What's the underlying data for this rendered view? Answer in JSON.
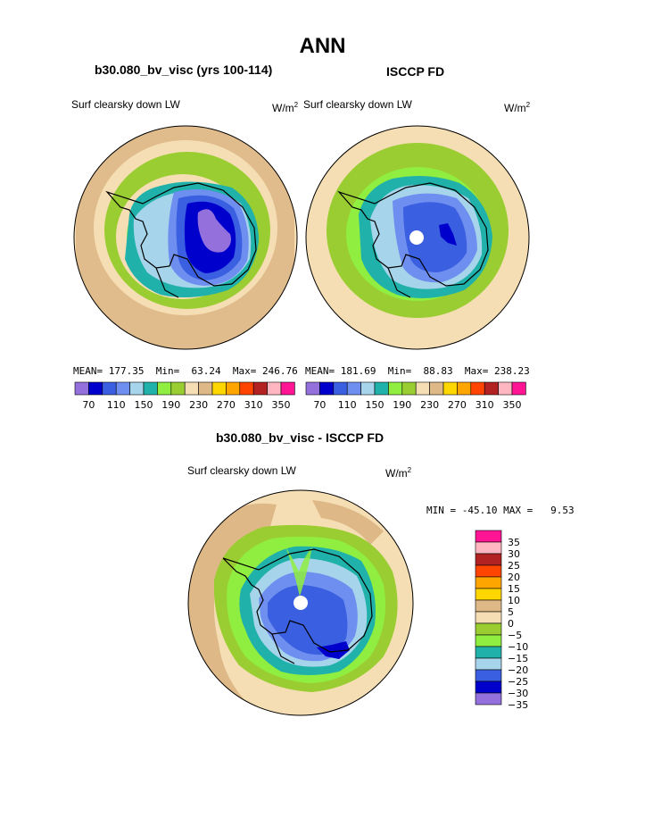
{
  "page_title": "ANN",
  "panels": {
    "left": {
      "title": "b30.080_bv_visc (yrs 100-114)",
      "variable": "Surf clearsky down LW",
      "units_base": "W/m",
      "units_exp": "2",
      "stats": {
        "mean_label": "MEAN=",
        "mean": "177.35",
        "min_label": "Min=",
        "min": "63.24",
        "max_label": "Max=",
        "max": "246.76"
      }
    },
    "right": {
      "title": "ISCCP FD",
      "variable": "Surf clearsky down LW",
      "units_base": "W/m",
      "units_exp": "2",
      "stats": {
        "mean_label": "MEAN=",
        "mean": "181.69",
        "min_label": "Min=",
        "min": "88.83",
        "max_label": "Max=",
        "max": "238.23"
      }
    },
    "diff": {
      "title": "b30.080_bv_visc - ISCCP FD",
      "variable": "Surf clearsky down LW",
      "units_base": "W/m",
      "units_exp": "2",
      "stats": {
        "min_label": "MIN =",
        "min": "-45.10",
        "max_label": "MAX =",
        "max": "9.53"
      }
    }
  },
  "chart_data": [
    {
      "type": "heatmap",
      "projection": "south-polar-stereographic",
      "title": "b30.080_bv_visc (yrs 100-114)",
      "variable": "Surf clearsky down LW",
      "units": "W/m2",
      "levels": [
        70,
        90,
        110,
        130,
        150,
        170,
        190,
        210,
        230,
        250,
        270,
        290,
        310,
        330,
        350
      ],
      "colorbar_tick_labels": [
        "70",
        "110",
        "150",
        "190",
        "230",
        "270",
        "310",
        "350"
      ],
      "colors": [
        "#9370db",
        "#0000cd",
        "#3a5fe0",
        "#6f8ff0",
        "#a6d4ea",
        "#20b2aa",
        "#90ee40",
        "#9acd32",
        "#f5deb3",
        "#deb887",
        "#ffd700",
        "#ffa500",
        "#ff4500",
        "#b22222",
        "#ffb6c1",
        "#ff1493"
      ],
      "mean": 177.35,
      "min": 63.24,
      "max": 246.76
    },
    {
      "type": "heatmap",
      "projection": "south-polar-stereographic",
      "title": "ISCCP FD",
      "variable": "Surf clearsky down LW",
      "units": "W/m2",
      "levels": [
        70,
        90,
        110,
        130,
        150,
        170,
        190,
        210,
        230,
        250,
        270,
        290,
        310,
        330,
        350
      ],
      "colorbar_tick_labels": [
        "70",
        "110",
        "150",
        "190",
        "230",
        "270",
        "310",
        "350"
      ],
      "colors": [
        "#9370db",
        "#0000cd",
        "#3a5fe0",
        "#6f8ff0",
        "#a6d4ea",
        "#20b2aa",
        "#90ee40",
        "#9acd32",
        "#f5deb3",
        "#deb887",
        "#ffd700",
        "#ffa500",
        "#ff4500",
        "#b22222",
        "#ffb6c1",
        "#ff1493"
      ],
      "mean": 181.69,
      "min": 88.83,
      "max": 238.23
    },
    {
      "type": "heatmap",
      "projection": "south-polar-stereographic",
      "title": "b30.080_bv_visc - ISCCP FD",
      "variable": "Surf clearsky down LW",
      "units": "W/m2",
      "levels": [
        -35,
        -30,
        -25,
        -20,
        -15,
        -10,
        -5,
        0,
        5,
        10,
        15,
        20,
        25,
        30,
        35
      ],
      "colorbar_tick_labels": [
        "35",
        "30",
        "25",
        "20",
        "15",
        "10",
        "5",
        "0",
        "−5",
        "−10",
        "−15",
        "−20",
        "−25",
        "−30",
        "−35"
      ],
      "colors_top_to_bottom": [
        "#ff1493",
        "#ffb6c1",
        "#b22222",
        "#ff4500",
        "#ffa500",
        "#ffd700",
        "#deb887",
        "#f5deb3",
        "#9acd32",
        "#90ee40",
        "#20b2aa",
        "#a6d4ea",
        "#3a5fe0",
        "#0000cd",
        "#9370db"
      ],
      "min": -45.1,
      "max": 9.53
    }
  ]
}
